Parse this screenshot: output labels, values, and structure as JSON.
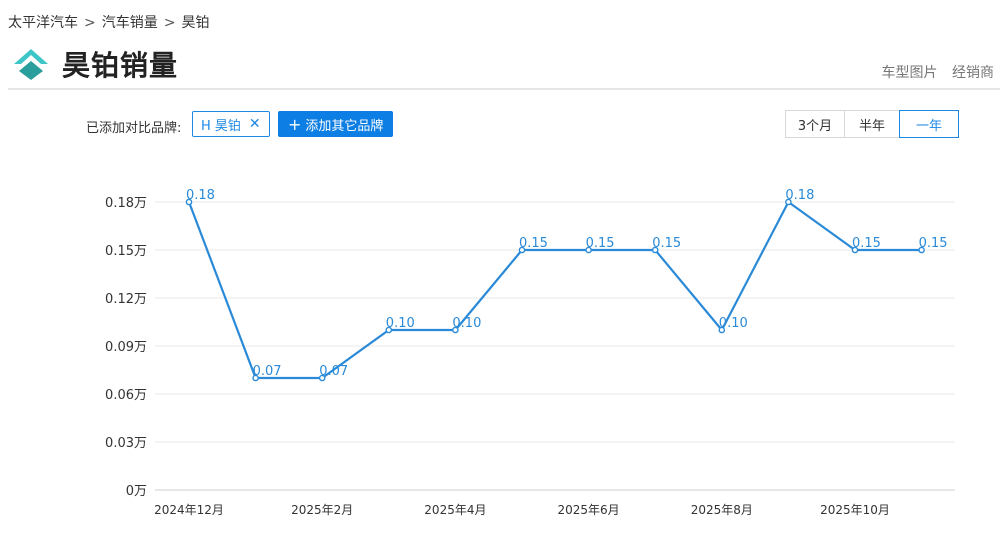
{
  "breadcrumb": [
    {
      "label": "太平洋汽车"
    },
    {
      "label": "汽车销量"
    },
    {
      "label": "昊铂"
    }
  ],
  "breadcrumb_separator": ">",
  "title": "昊铂销量",
  "header_links": [
    "车型图片",
    "经销商"
  ],
  "compare": {
    "label": "已添加对比品牌:",
    "brand_tag": "H 昊铂",
    "remove_glyph": "✕",
    "add_button": "添加其它品牌",
    "add_glyph": "+"
  },
  "range_options": [
    {
      "label": "3个月",
      "active": false
    },
    {
      "label": "半年",
      "active": false
    },
    {
      "label": "一年",
      "active": true
    }
  ],
  "colors": {
    "accent": "#1e88e5",
    "line": "#2a8ad8",
    "logo_teal": "#3ec6c6",
    "logo_dark": "#2a9d9d"
  },
  "chart_data": {
    "type": "line",
    "x": [
      "2024年12月",
      "2025年1月",
      "2025年2月",
      "2025年3月",
      "2025年4月",
      "2025年5月",
      "2025年6月",
      "2025年7月",
      "2025年8月",
      "2025年9月",
      "2025年10月",
      "2025年11月"
    ],
    "x_tick_labels": [
      {
        "index": 0,
        "label": "2024年12月"
      },
      {
        "index": 2,
        "label": "2025年2月"
      },
      {
        "index": 4,
        "label": "2025年4月"
      },
      {
        "index": 6,
        "label": "2025年6月"
      },
      {
        "index": 8,
        "label": "2025年8月"
      },
      {
        "index": 10,
        "label": "2025年10月"
      }
    ],
    "series": [
      {
        "values": [
          0.18,
          0.07,
          0.07,
          0.1,
          0.1,
          0.15,
          0.15,
          0.15,
          0.1,
          0.18,
          0.15,
          0.15
        ]
      }
    ],
    "data_labels": [
      "0.18",
      "0.07",
      "0.07",
      "0.10",
      "0.10",
      "0.15",
      "0.15",
      "0.15",
      "0.10",
      "0.18",
      "0.15",
      "0.15"
    ],
    "y_ticks": [
      {
        "value": 0,
        "label": "0万"
      },
      {
        "value": 0.03,
        "label": "0.03万"
      },
      {
        "value": 0.06,
        "label": "0.06万"
      },
      {
        "value": 0.09,
        "label": "0.09万"
      },
      {
        "value": 0.12,
        "label": "0.12万"
      },
      {
        "value": 0.15,
        "label": "0.15万"
      },
      {
        "value": 0.18,
        "label": "0.18万"
      }
    ],
    "ylim": [
      0,
      0.18
    ],
    "grid": true,
    "legend": "none"
  }
}
